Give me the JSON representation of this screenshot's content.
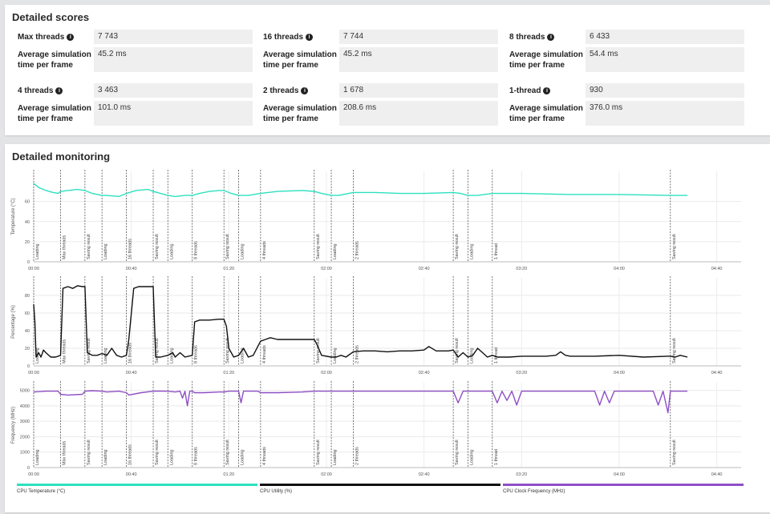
{
  "scores": {
    "title": "Detailed scores",
    "rows": [
      [
        {
          "label": "Max threads",
          "score": "7 743",
          "sim_label": "Average simulation time per frame",
          "sim": "45.2 ms"
        },
        {
          "label": "16 threads",
          "score": "7 744",
          "sim_label": "Average simulation time per frame",
          "sim": "45.2 ms"
        },
        {
          "label": "8 threads",
          "score": "6 433",
          "sim_label": "Average simulation time per frame",
          "sim": "54.4 ms"
        }
      ],
      [
        {
          "label": "4 threads",
          "score": "3 463",
          "sim_label": "Average simulation time per frame",
          "sim": "101.0 ms"
        },
        {
          "label": "2 threads",
          "score": "1 678",
          "sim_label": "Average simulation time per frame",
          "sim": "208.6 ms"
        },
        {
          "label": "1-thread",
          "score": "930",
          "sim_label": "Average simulation time per frame",
          "sim": "376.0 ms"
        }
      ]
    ]
  },
  "monitoring": {
    "title": "Detailed monitoring",
    "legend": [
      {
        "label": "CPU Temperature (°C)",
        "color": "#2de0bf"
      },
      {
        "label": "CPU Utility (%)",
        "color": "#111111"
      },
      {
        "label": "CPU Clock Frequency (MHz)",
        "color": "#8e4fc4"
      }
    ]
  },
  "chart_data": [
    {
      "type": "line",
      "ylabel": "Temperature (°C)",
      "xlim": [
        0,
        290
      ],
      "ylim": [
        0,
        90
      ],
      "yticks": [
        "0",
        "20",
        "40",
        "60"
      ],
      "xticks": [
        "00:00",
        "00:40",
        "01:20",
        "02:00",
        "02:40",
        "03:20",
        "04:00",
        "04:40"
      ],
      "color": "#2de0bf",
      "markers": [
        {
          "t": 0,
          "label": "Loading"
        },
        {
          "t": 11,
          "label": "Max threads"
        },
        {
          "t": 21,
          "label": "Saving result"
        },
        {
          "t": 28,
          "label": "Loading"
        },
        {
          "t": 38,
          "label": "16 threads"
        },
        {
          "t": 49,
          "label": "Saving result"
        },
        {
          "t": 55,
          "label": "Loading"
        },
        {
          "t": 65,
          "label": "8 threads"
        },
        {
          "t": 78,
          "label": "Saving result"
        },
        {
          "t": 84,
          "label": "Loading"
        },
        {
          "t": 93,
          "label": "4 threads"
        },
        {
          "t": 115,
          "label": "Saving result"
        },
        {
          "t": 122,
          "label": "Loading"
        },
        {
          "t": 131,
          "label": "2 threads"
        },
        {
          "t": 172,
          "label": "Saving result"
        },
        {
          "t": 178,
          "label": "Loading"
        },
        {
          "t": 188,
          "label": "1 thread"
        },
        {
          "t": 261,
          "label": "Saving result"
        }
      ],
      "x": [
        0,
        2,
        5,
        8,
        10,
        11,
        14,
        18,
        21,
        24,
        28,
        30,
        35,
        38,
        42,
        47,
        49,
        52,
        55,
        58,
        62,
        65,
        68,
        72,
        76,
        78,
        81,
        84,
        88,
        93,
        100,
        110,
        115,
        118,
        122,
        125,
        131,
        140,
        150,
        160,
        172,
        175,
        178,
        182,
        188,
        200,
        220,
        240,
        261,
        268
      ],
      "values": [
        78,
        74,
        71,
        69,
        68,
        70,
        71,
        72,
        71,
        68,
        66,
        66,
        65,
        68,
        71,
        72,
        70,
        68,
        66,
        65,
        66,
        66,
        68,
        70,
        71,
        71,
        68,
        66,
        66,
        68,
        70,
        71,
        70,
        68,
        66,
        66,
        69,
        69,
        68,
        68,
        69,
        68,
        66,
        66,
        68,
        68,
        67,
        67,
        66,
        66
      ]
    },
    {
      "type": "line",
      "ylabel": "Percentage (%)",
      "xlim": [
        0,
        290
      ],
      "ylim": [
        0,
        100
      ],
      "yticks": [
        "0",
        "20",
        "40",
        "60",
        "80"
      ],
      "xticks": [
        "00:00",
        "00:40",
        "01:20",
        "02:00",
        "02:40",
        "03:20",
        "04:00",
        "04:40"
      ],
      "color": "#111111",
      "markers": [
        {
          "t": 0,
          "label": "Loading"
        },
        {
          "t": 11,
          "label": "Max threads"
        },
        {
          "t": 21,
          "label": "Saving result"
        },
        {
          "t": 28,
          "label": "Loading"
        },
        {
          "t": 38,
          "label": "16 threads"
        },
        {
          "t": 49,
          "label": "Saving result"
        },
        {
          "t": 55,
          "label": "Loading"
        },
        {
          "t": 65,
          "label": "8 threads"
        },
        {
          "t": 78,
          "label": "Saving result"
        },
        {
          "t": 84,
          "label": "Loading"
        },
        {
          "t": 93,
          "label": "4 threads"
        },
        {
          "t": 115,
          "label": "Saving result"
        },
        {
          "t": 122,
          "label": "Loading"
        },
        {
          "t": 131,
          "label": "2 threads"
        },
        {
          "t": 172,
          "label": "Saving result"
        },
        {
          "t": 178,
          "label": "Loading"
        },
        {
          "t": 188,
          "label": "1 thread"
        },
        {
          "t": 261,
          "label": "Saving result"
        }
      ],
      "x": [
        0,
        0.5,
        1,
        2,
        3,
        4,
        5,
        7,
        9,
        11,
        12,
        14,
        16,
        18,
        20,
        21,
        22,
        24,
        26,
        28,
        30,
        32,
        34,
        36,
        38,
        39,
        41,
        43,
        45,
        47,
        49,
        50,
        52,
        55,
        57,
        58,
        60,
        62,
        65,
        66,
        68,
        72,
        76,
        78,
        79,
        80,
        82,
        84,
        86,
        88,
        90,
        93,
        95,
        97,
        100,
        105,
        110,
        115,
        116,
        118,
        122,
        124,
        126,
        128,
        131,
        135,
        140,
        145,
        150,
        155,
        160,
        162,
        165,
        170,
        172,
        174,
        176,
        178,
        180,
        182,
        186,
        188,
        190,
        195,
        200,
        205,
        210,
        214,
        216,
        218,
        220,
        230,
        240,
        250,
        260,
        261,
        263,
        265,
        268
      ],
      "values": [
        70,
        50,
        10,
        15,
        10,
        18,
        15,
        10,
        10,
        12,
        88,
        90,
        88,
        91,
        90,
        90,
        15,
        12,
        12,
        14,
        12,
        20,
        12,
        10,
        12,
        30,
        88,
        90,
        90,
        90,
        90,
        10,
        10,
        12,
        15,
        10,
        15,
        10,
        12,
        50,
        52,
        52,
        53,
        53,
        45,
        20,
        10,
        12,
        20,
        10,
        12,
        28,
        30,
        32,
        30,
        30,
        30,
        30,
        25,
        12,
        10,
        10,
        12,
        10,
        16,
        17,
        17,
        16,
        17,
        17,
        18,
        22,
        17,
        17,
        18,
        10,
        15,
        10,
        12,
        20,
        10,
        12,
        10,
        10,
        11,
        11,
        11,
        12,
        16,
        12,
        11,
        11,
        12,
        10,
        11,
        11,
        10,
        12,
        10
      ]
    },
    {
      "type": "line",
      "ylabel": "Frequency (MHz)",
      "xlim": [
        0,
        290
      ],
      "ylim": [
        0,
        5500
      ],
      "yticks": [
        "0",
        "1000",
        "2000",
        "3000",
        "4000",
        "5000"
      ],
      "xticks": [
        "00:00",
        "00:40",
        "01:20",
        "02:00",
        "02:40",
        "03:20",
        "04:00",
        "04:40"
      ],
      "color": "#8e4fc4",
      "markers": [
        {
          "t": 0,
          "label": "Loading"
        },
        {
          "t": 11,
          "label": "Max threads"
        },
        {
          "t": 21,
          "label": "Saving result"
        },
        {
          "t": 28,
          "label": "Loading"
        },
        {
          "t": 38,
          "label": "16 threads"
        },
        {
          "t": 49,
          "label": "Saving result"
        },
        {
          "t": 55,
          "label": "Loading"
        },
        {
          "t": 65,
          "label": "8 threads"
        },
        {
          "t": 78,
          "label": "Saving result"
        },
        {
          "t": 84,
          "label": "Loading"
        },
        {
          "t": 93,
          "label": "4 threads"
        },
        {
          "t": 115,
          "label": "Saving result"
        },
        {
          "t": 122,
          "label": "Loading"
        },
        {
          "t": 131,
          "label": "2 threads"
        },
        {
          "t": 172,
          "label": "Saving result"
        },
        {
          "t": 178,
          "label": "Loading"
        },
        {
          "t": 188,
          "label": "1 thread"
        },
        {
          "t": 261,
          "label": "Saving result"
        }
      ],
      "x": [
        0,
        5,
        10,
        11,
        14,
        20,
        21,
        24,
        28,
        30,
        35,
        38,
        39,
        44,
        49,
        50,
        55,
        58,
        60,
        61,
        62,
        63,
        64,
        65,
        66,
        70,
        76,
        78,
        80,
        82,
        84,
        85,
        86,
        88,
        92,
        93,
        100,
        110,
        115,
        120,
        125,
        130,
        140,
        150,
        160,
        172,
        174,
        176,
        178,
        180,
        182,
        186,
        188,
        190,
        192,
        194,
        196,
        198,
        200,
        202,
        210,
        220,
        230,
        232,
        234,
        236,
        238,
        240,
        242,
        244,
        250,
        252,
        254,
        256,
        258,
        260,
        261,
        262,
        265,
        268
      ],
      "values": [
        4900,
        4950,
        4950,
        4750,
        4700,
        4750,
        4950,
        4980,
        4950,
        4900,
        4950,
        4850,
        4700,
        4850,
        4950,
        4960,
        4950,
        4900,
        4950,
        4500,
        4950,
        4000,
        4950,
        4950,
        4850,
        4850,
        4900,
        4900,
        4950,
        4950,
        4950,
        4200,
        4950,
        4950,
        4950,
        4850,
        4850,
        4900,
        4950,
        4950,
        4950,
        4950,
        4950,
        4950,
        4950,
        4950,
        4200,
        4950,
        4950,
        4950,
        4950,
        4950,
        4950,
        4200,
        4950,
        4350,
        4950,
        4050,
        4950,
        4950,
        4950,
        4950,
        4950,
        4050,
        4950,
        4200,
        4950,
        4950,
        4950,
        4950,
        4950,
        4950,
        4950,
        4050,
        4950,
        3550,
        4950,
        4950,
        4950,
        4950
      ]
    }
  ]
}
